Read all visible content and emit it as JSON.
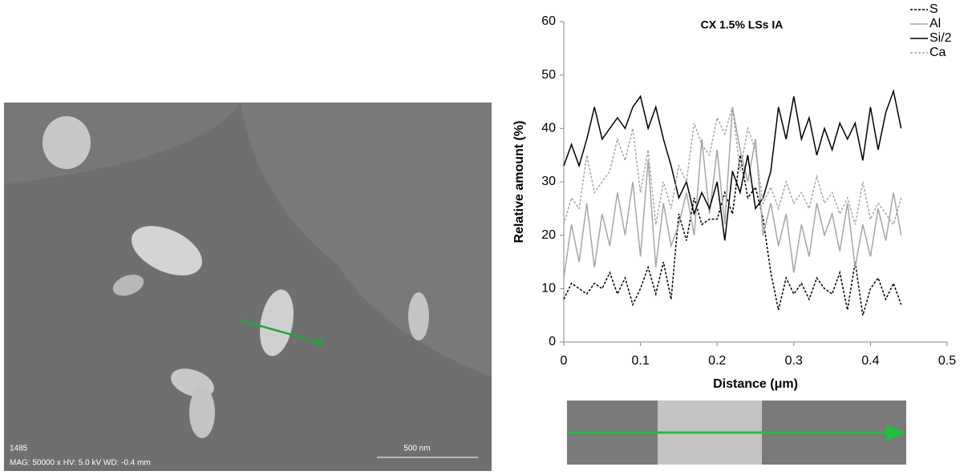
{
  "image": {
    "id_label": "1485",
    "info": "MAG: 50000 x HV: 5.0 kV WD: -0.4 mm",
    "scale_bar": "500 nm"
  },
  "chart_data": {
    "type": "line",
    "title": "CX 1.5% LSs IA",
    "x_label": "Distance (μm)",
    "y_label": "Relative amount (%)",
    "x": [
      0,
      0.01,
      0.02,
      0.03,
      0.04,
      0.05,
      0.06,
      0.07,
      0.08,
      0.09,
      0.1,
      0.11,
      0.12,
      0.13,
      0.14,
      0.15,
      0.16,
      0.17,
      0.18,
      0.19,
      0.2,
      0.21,
      0.22,
      0.23,
      0.24,
      0.25,
      0.26,
      0.27,
      0.28,
      0.29,
      0.3,
      0.31,
      0.32,
      0.33,
      0.34,
      0.35,
      0.36,
      0.37,
      0.38,
      0.39,
      0.4,
      0.41,
      0.42,
      0.43,
      0.44
    ],
    "series": [
      {
        "name": "S",
        "color": "#000000",
        "linestyle": "dashed",
        "values": [
          8,
          11,
          10,
          9,
          11,
          10,
          13,
          9,
          12,
          7,
          10,
          14,
          9,
          15,
          8,
          24,
          19,
          27,
          22,
          23,
          23,
          28,
          24,
          35,
          27,
          29,
          23,
          13,
          6,
          12,
          9,
          11,
          8,
          12,
          10,
          9,
          13,
          6,
          15,
          5,
          10,
          12,
          8,
          11,
          7
        ]
      },
      {
        "name": "Al",
        "color": "#a6a6a6",
        "linestyle": "solid",
        "values": [
          12,
          22,
          15,
          26,
          14,
          24,
          18,
          28,
          20,
          30,
          16,
          34,
          14,
          26,
          18,
          22,
          28,
          20,
          38,
          24,
          36,
          22,
          44,
          36,
          30,
          38,
          20,
          26,
          18,
          24,
          13,
          22,
          16,
          26,
          20,
          24,
          17,
          26,
          14,
          22,
          16,
          25,
          19,
          28,
          20
        ]
      },
      {
        "name": "Si/2",
        "color": "#000000",
        "linestyle": "solid",
        "values": [
          33,
          37,
          33,
          38,
          44,
          38,
          40,
          42,
          40,
          44,
          46,
          40,
          44,
          38,
          33,
          27,
          30,
          24,
          28,
          25,
          30,
          19,
          32,
          28,
          35,
          25,
          27,
          32,
          44,
          38,
          46,
          38,
          42,
          35,
          40,
          36,
          41,
          38,
          41,
          34,
          44,
          36,
          43,
          47,
          40
        ]
      },
      {
        "name": "Ca",
        "color": "#a6a6a6",
        "linestyle": "dashed",
        "values": [
          22,
          27,
          25,
          35,
          28,
          30,
          32,
          38,
          34,
          40,
          28,
          36,
          22,
          30,
          25,
          33,
          30,
          41,
          37,
          35,
          42,
          39,
          44,
          32,
          40,
          36,
          26,
          29,
          25,
          30,
          26,
          28,
          25,
          31,
          26,
          28,
          24,
          27,
          22,
          30,
          23,
          26,
          24,
          22,
          27
        ]
      }
    ],
    "xlim": [
      0,
      0.5
    ],
    "xticks": [
      0,
      0.1,
      0.2,
      0.3,
      0.4,
      0.5
    ],
    "ylim": [
      0,
      60
    ],
    "yticks": [
      0,
      10,
      20,
      30,
      40,
      50,
      60
    ],
    "legend": "top-right"
  }
}
